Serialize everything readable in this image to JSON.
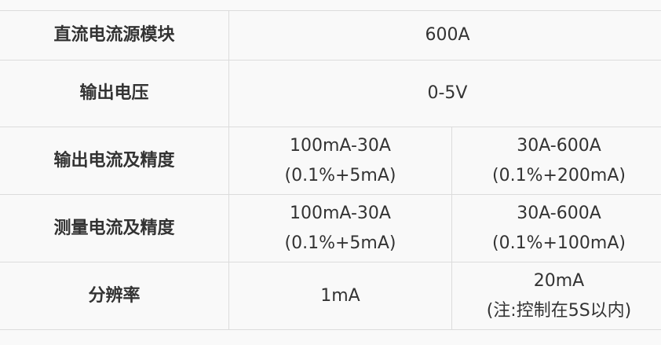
{
  "rows": [
    {
      "label": "直流电流源模块",
      "value": "600A"
    },
    {
      "label": "输出电压",
      "value": "0-5V"
    },
    {
      "label": "输出电流及精度",
      "cells": [
        [
          "100mA-30A",
          "(0.1%+5mA)"
        ],
        [
          "30A-600A",
          "(0.1%+200mA)"
        ]
      ]
    },
    {
      "label": "测量电流及精度",
      "cells": [
        [
          "100mA-30A",
          "(0.1%+5mA)"
        ],
        [
          "30A-600A",
          "(0.1%+100mA)"
        ]
      ]
    },
    {
      "label": "分辨率",
      "cells": [
        [
          "1mA"
        ],
        [
          "20mA",
          "(注:控制在5S以内)"
        ]
      ]
    }
  ]
}
